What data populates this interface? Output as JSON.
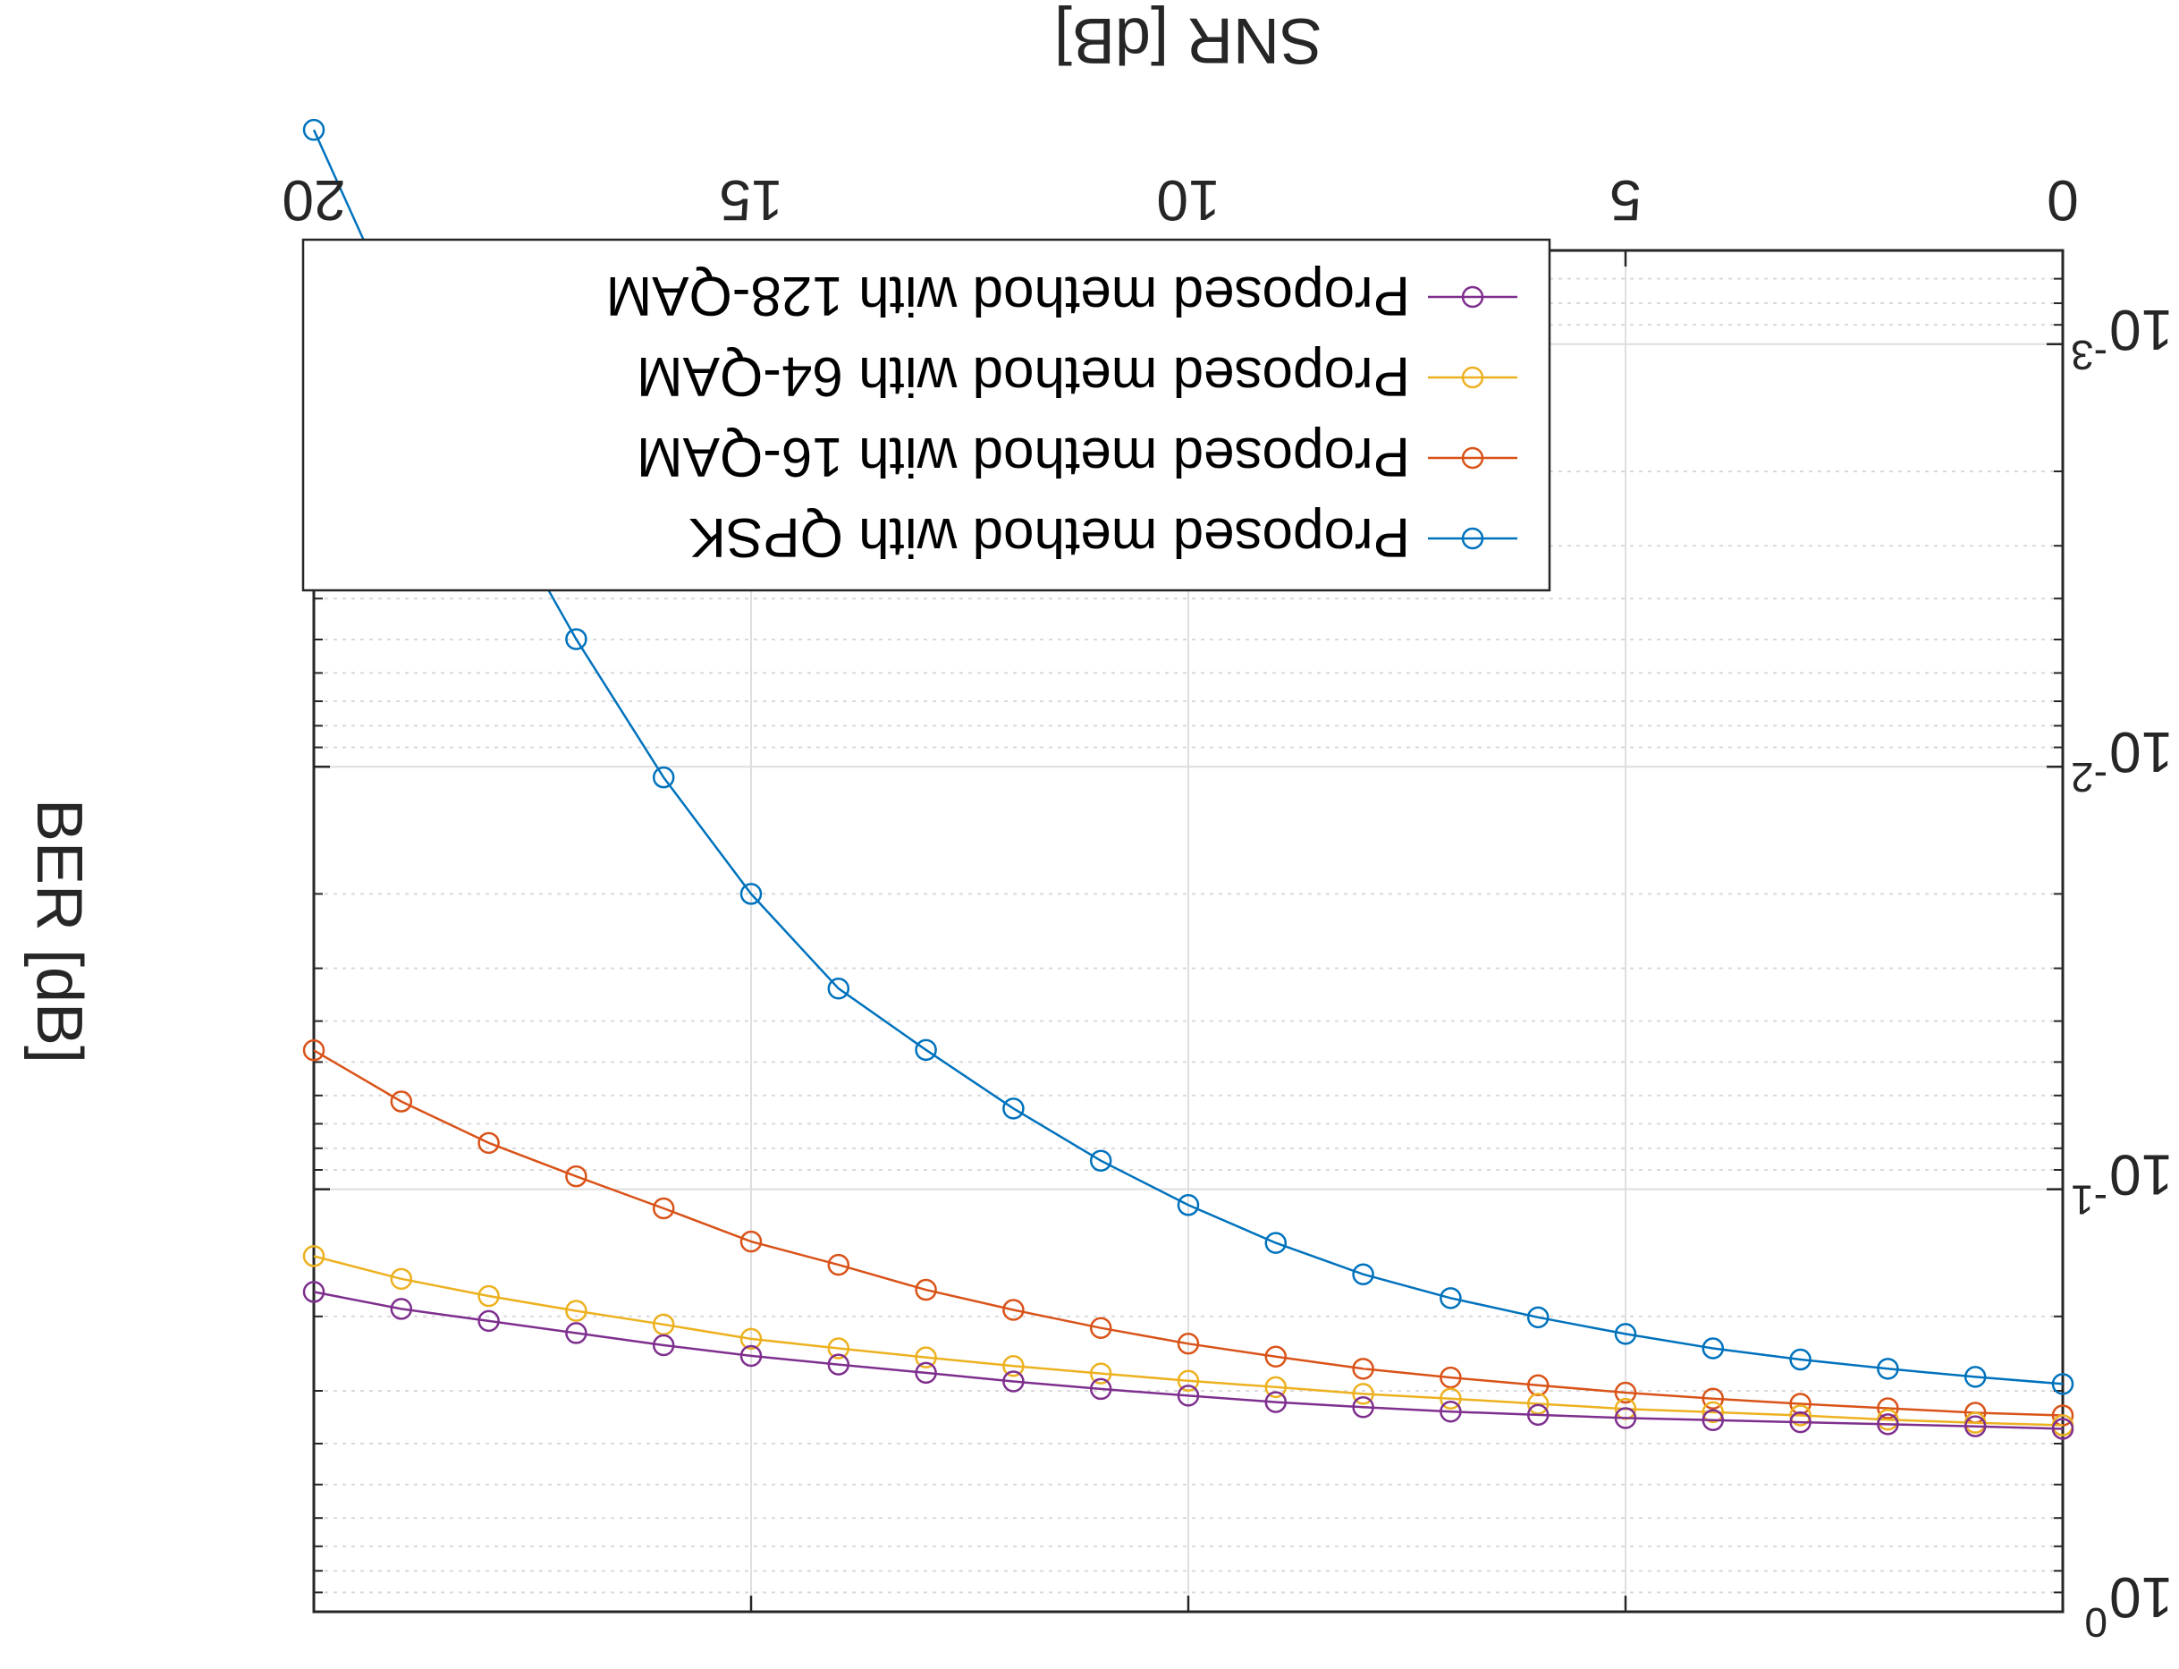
{
  "chart_data": {
    "type": "line",
    "title": "",
    "xlabel": "SNR [dB]",
    "ylabel": "BER [dB]",
    "x_scale": "linear",
    "y_scale": "log",
    "xlim": [
      0,
      20
    ],
    "ylim": [
      0.0006,
      1
    ],
    "x_ticks": [
      0,
      5,
      10,
      15,
      20
    ],
    "x_tick_labels": [
      "0",
      "5",
      "10",
      "15",
      "20"
    ],
    "y_ticks": [
      {
        "value": 0.001,
        "base": "10",
        "exp": "-3"
      },
      {
        "value": 0.01,
        "base": "10",
        "exp": "-2"
      },
      {
        "value": 0.1,
        "base": "10",
        "exp": "-1"
      },
      {
        "value": 1,
        "base": "10",
        "exp": "0"
      }
    ],
    "grid": true,
    "minor_grid": true,
    "legend_position": "top-left",
    "x": [
      0,
      1,
      2,
      3,
      4,
      5,
      6,
      7,
      8,
      9,
      10,
      11,
      12,
      13,
      14,
      15,
      16,
      17,
      18,
      19,
      20
    ],
    "series": [
      {
        "name": "Proposed method with QPSK",
        "color": "#0072BD",
        "values": [
          0.289,
          0.278,
          0.266,
          0.253,
          0.238,
          0.22,
          0.201,
          0.181,
          0.159,
          0.134,
          0.109,
          0.0856,
          0.0644,
          0.0468,
          0.0335,
          0.02,
          0.0106,
          0.00499,
          0.00215,
          0.000892,
          0.000311
        ]
      },
      {
        "name": "Proposed method with 16-QAM",
        "color": "#D95319",
        "values": [
          0.343,
          0.338,
          0.33,
          0.322,
          0.313,
          0.303,
          0.291,
          0.279,
          0.266,
          0.249,
          0.232,
          0.213,
          0.193,
          0.173,
          0.151,
          0.133,
          0.111,
          0.0932,
          0.0777,
          0.062,
          0.0469
        ]
      },
      {
        "name": "Proposed method with 64-QAM",
        "color": "#EDB120",
        "values": [
          0.362,
          0.357,
          0.351,
          0.343,
          0.337,
          0.331,
          0.322,
          0.313,
          0.305,
          0.294,
          0.284,
          0.273,
          0.262,
          0.25,
          0.238,
          0.226,
          0.209,
          0.194,
          0.179,
          0.163,
          0.144
        ]
      },
      {
        "name": "Proposed method with 128-QAM",
        "color": "#7E2F8E",
        "values": [
          0.369,
          0.364,
          0.36,
          0.356,
          0.352,
          0.348,
          0.342,
          0.336,
          0.328,
          0.319,
          0.308,
          0.297,
          0.285,
          0.272,
          0.26,
          0.248,
          0.234,
          0.219,
          0.205,
          0.192,
          0.175
        ]
      }
    ]
  }
}
